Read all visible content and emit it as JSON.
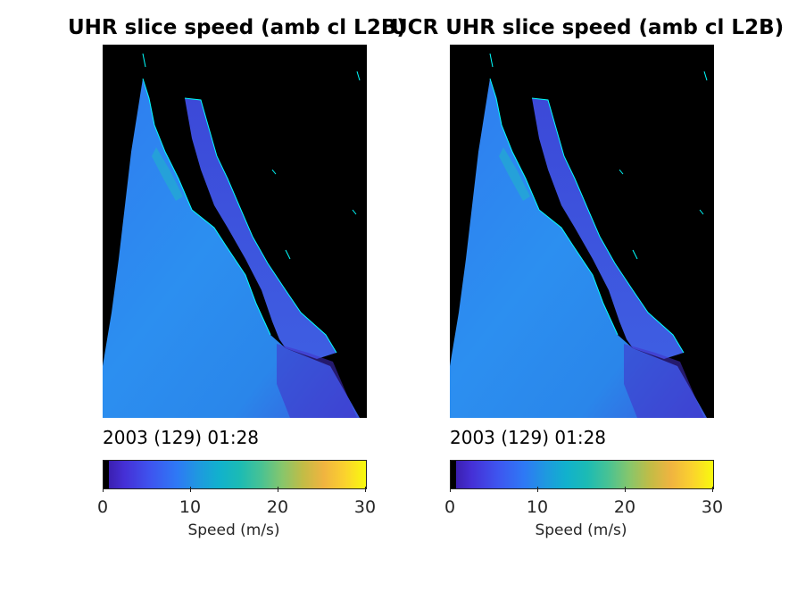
{
  "panels": [
    {
      "title": "UHR slice speed (amb cl L2B)",
      "timestamp": "2003 (129) 01:28",
      "colorbar": {
        "label": "Speed (m/s)",
        "ticks": [
          "0",
          "10",
          "20",
          "30"
        ],
        "min": 0,
        "max": 30,
        "colormap": "parula"
      }
    },
    {
      "title": "UCR UHR slice speed (amb cl L2B)",
      "timestamp": "2003 (129) 01:28",
      "colorbar": {
        "label": "Speed (m/s)",
        "ticks": [
          "0",
          "10",
          "20",
          "30"
        ],
        "min": 0,
        "max": 30,
        "colormap": "parula"
      }
    }
  ],
  "colors": {
    "land": "#000000",
    "coastline": "#00ffff",
    "ocean_low": "#3a4fe0",
    "ocean_mid": "#2a8ff0"
  }
}
